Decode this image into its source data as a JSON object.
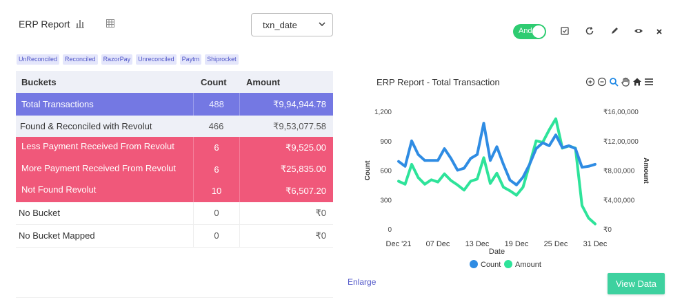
{
  "header": {
    "title": "ERP Report",
    "select_value": "txn_date",
    "toggle_label": "And"
  },
  "tags": [
    "UnReconciled",
    "Reconciled",
    "RazorPay",
    "Unreconciled",
    "Paytm",
    "Shiprocket"
  ],
  "table": {
    "columns": [
      "Buckets",
      "Count",
      "Amount"
    ],
    "rows": [
      {
        "bucket": "Total  Transactions",
        "count": "488",
        "amount": "₹9,94,944.78",
        "style": "total"
      },
      {
        "bucket": "Found & Reconciled with Revolut",
        "count": "466",
        "amount": "₹9,53,077.58",
        "style": "found"
      },
      {
        "bucket": "Less Payment Received From Revolut",
        "count": "6",
        "amount": "₹9,525.00",
        "style": "red"
      },
      {
        "bucket": "More Payment Received From Revolut",
        "count": "6",
        "amount": "₹25,835.00",
        "style": "red"
      },
      {
        "bucket": "Not Found Revolut",
        "count": "10",
        "amount": "₹6,507.20",
        "style": "red"
      },
      {
        "bucket": "No Bucket",
        "count": "0",
        "amount": "₹0",
        "style": "plain"
      },
      {
        "bucket": "No Bucket Mapped",
        "count": "0",
        "amount": "₹0",
        "style": "plain"
      }
    ]
  },
  "footer": {
    "enlarge_label": "Enlarge",
    "view_button": "View Data"
  },
  "colors": {
    "accent": "#4f55c8",
    "total_row": "#7478e3",
    "red_row": "#f0587a",
    "toggle": "#2ecc71",
    "count_series": "#2f8ce3",
    "amount_series": "#2ee39a"
  },
  "chart_data": {
    "type": "line",
    "title": "ERP Report - Total Transaction",
    "xlabel": "Date",
    "ylabel": "Count",
    "y2label": "Amount",
    "x_ticks": [
      "Dec '21",
      "07 Dec",
      "13 Dec",
      "19 Dec",
      "25 Dec",
      "31 Dec"
    ],
    "y_ticks": [
      "0",
      "300",
      "600",
      "900",
      "1,200"
    ],
    "y2_ticks": [
      "₹0",
      "₹4,00,000",
      "₹8,00,000",
      "₹12,00,000",
      "₹16,00,000"
    ],
    "ylim": [
      0,
      1200
    ],
    "y2lim": [
      0,
      1600000
    ],
    "x": [
      "01 Dec",
      "02 Dec",
      "03 Dec",
      "04 Dec",
      "05 Dec",
      "06 Dec",
      "07 Dec",
      "08 Dec",
      "09 Dec",
      "10 Dec",
      "11 Dec",
      "12 Dec",
      "13 Dec",
      "14 Dec",
      "15 Dec",
      "16 Dec",
      "17 Dec",
      "18 Dec",
      "19 Dec",
      "20 Dec",
      "21 Dec",
      "22 Dec",
      "23 Dec",
      "24 Dec",
      "25 Dec",
      "26 Dec",
      "27 Dec",
      "28 Dec",
      "29 Dec",
      "30 Dec",
      "31 Dec"
    ],
    "legend_position": "bottom",
    "series": [
      {
        "name": "Count",
        "axis": "left",
        "values": [
          690,
          640,
          900,
          760,
          700,
          700,
          700,
          820,
          720,
          600,
          620,
          720,
          760,
          1080,
          700,
          840,
          660,
          500,
          450,
          530,
          660,
          820,
          880,
          850,
          960,
          830,
          850,
          820,
          630,
          640,
          660
        ]
      },
      {
        "name": "Amount",
        "axis": "right",
        "values": [
          650000,
          610000,
          880000,
          700000,
          610000,
          670000,
          640000,
          750000,
          660000,
          600000,
          530000,
          650000,
          680000,
          970000,
          620000,
          760000,
          570000,
          520000,
          460000,
          570000,
          880000,
          1200000,
          1180000,
          1350000,
          1500000,
          1100000,
          1130000,
          1100000,
          320000,
          150000,
          70000
        ]
      }
    ]
  }
}
